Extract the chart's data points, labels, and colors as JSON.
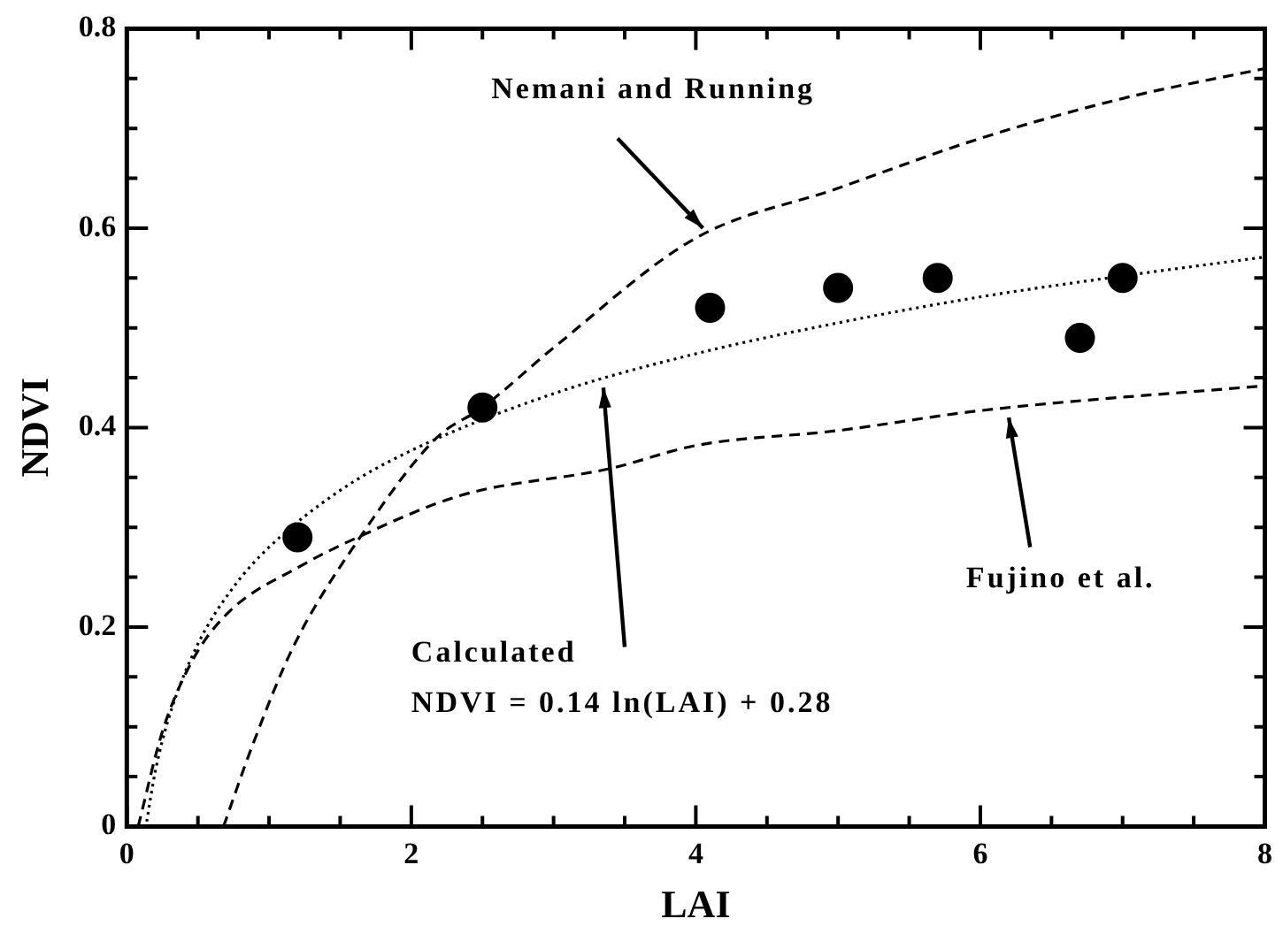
{
  "chart_data": {
    "type": "line",
    "xlabel": "LAI",
    "ylabel": "NDVI",
    "xlim": [
      0,
      8
    ],
    "ylim": [
      0,
      0.8
    ],
    "xticks": [
      0,
      {
        "value": 0.5,
        "label": null
      },
      {
        "value": 1,
        "label": null
      },
      {
        "value": 1.5,
        "label": null
      },
      2,
      {
        "value": 2.5,
        "label": null
      },
      {
        "value": 3,
        "label": null
      },
      {
        "value": 3.5,
        "label": null
      },
      4,
      {
        "value": 4.5,
        "label": null
      },
      {
        "value": 5,
        "label": null
      },
      {
        "value": 5.5,
        "label": null
      },
      6,
      {
        "value": 6.5,
        "label": null
      },
      {
        "value": 7,
        "label": null
      },
      {
        "value": 7.5,
        "label": null
      },
      8
    ],
    "yticks": [
      0,
      {
        "value": 0.05,
        "label": null
      },
      {
        "value": 0.1,
        "label": null
      },
      {
        "value": 0.15,
        "label": null
      },
      0.2,
      {
        "value": 0.25,
        "label": null
      },
      {
        "value": 0.3,
        "label": null
      },
      {
        "value": 0.35,
        "label": null
      },
      0.4,
      {
        "value": 0.45,
        "label": null
      },
      {
        "value": 0.5,
        "label": null
      },
      {
        "value": 0.55,
        "label": null
      },
      0.6,
      {
        "value": 0.65,
        "label": null
      },
      {
        "value": 0.7,
        "label": null
      },
      {
        "value": 0.75,
        "label": null
      },
      0.8
    ],
    "grid": false,
    "legend": false,
    "annotations": [
      {
        "text": "Nemani and Running",
        "x": 4.05,
        "y": 0.6
      },
      "Calculated",
      {
        "text": "NDVI = 0.14 ln(LAI) + 0.28",
        "x": 3.35,
        "y": 0.44
      },
      {
        "text": "Fujino et al.",
        "x": 6.2,
        "y": 0.41
      }
    ],
    "series": [
      {
        "type": "scatter",
        "marker": "circle",
        "color": "#000000",
        "x": [
          1.2,
          2.5,
          4.1,
          5.0,
          5.7,
          6.7,
          7.0
        ],
        "values": [
          0.29,
          0.42,
          0.52,
          0.54,
          0.55,
          0.49,
          0.55
        ]
      },
      {
        "line_style": "dashed",
        "marker": "none",
        "color": "#000000",
        "x": [
          0.68,
          0.88,
          1.17,
          1.64,
          2.18,
          2.5,
          3,
          4,
          5,
          6,
          7,
          8
        ],
        "values": [
          0,
          0.08,
          0.18,
          0.29,
          0.39,
          0.42,
          0.48,
          0.59,
          0.64,
          0.69,
          0.73,
          0.76
        ]
      },
      {
        "line_style": "dotted",
        "marker": "none",
        "color": "#000000",
        "x": [
          0.14,
          0.2,
          0.3,
          0.5,
          0.75,
          1,
          1.5,
          2,
          3,
          4,
          5,
          6,
          7,
          8
        ],
        "values": [
          0.005,
          0.055,
          0.111,
          0.183,
          0.24,
          0.28,
          0.337,
          0.377,
          0.434,
          0.474,
          0.505,
          0.531,
          0.552,
          0.571
        ]
      },
      {
        "line_style": "dashed",
        "marker": "none",
        "color": "#000000",
        "x": [
          0.08,
          0.25,
          0.46,
          0.71,
          1.22,
          1.64,
          2.35,
          3.4,
          4,
          5,
          6,
          8
        ],
        "values": [
          0,
          0.095,
          0.166,
          0.214,
          0.261,
          0.291,
          0.332,
          0.359,
          0.382,
          0.397,
          0.417,
          0.442
        ]
      }
    ]
  }
}
